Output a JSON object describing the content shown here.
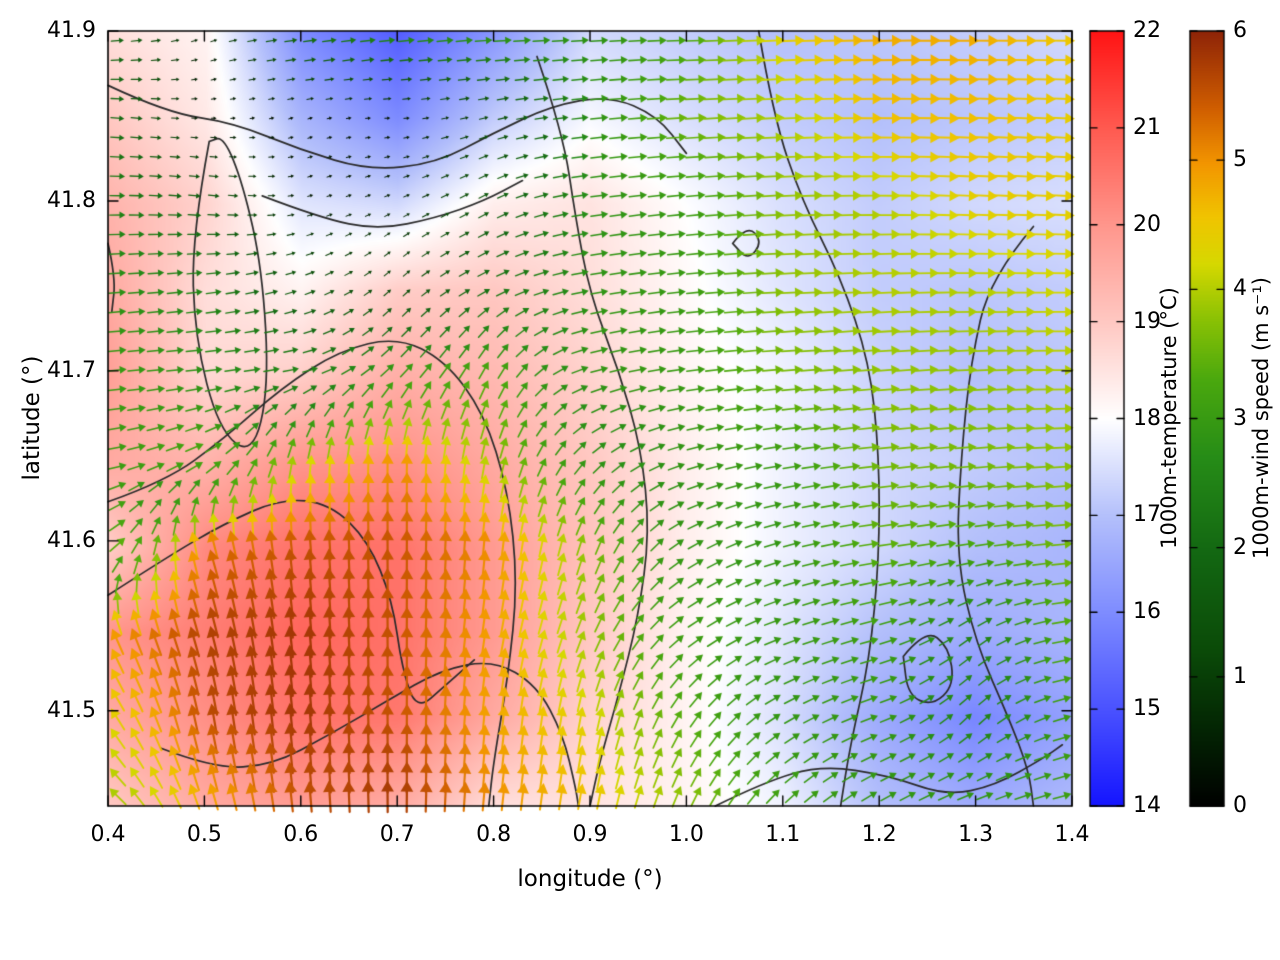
{
  "chart_data": {
    "type": "heatmap",
    "subtype": "temperature field with wind vector overlay and contours",
    "title": "",
    "xlabel": "longitude (°)",
    "ylabel": "latitude (°)",
    "xlim": [
      0.4,
      1.4
    ],
    "ylim": [
      41.444,
      41.9
    ],
    "grid": false,
    "frame_color": "#000000",
    "contour_color": "#2a2a2a",
    "xticks": {
      "values": [
        0.4,
        0.5,
        0.6,
        0.7,
        0.8,
        0.9,
        1.0,
        1.1,
        1.2,
        1.3,
        1.4
      ],
      "labels": [
        "0.4",
        "0.5",
        "0.6",
        "0.7",
        "0.8",
        "0.9",
        "1.0",
        "1.1",
        "1.2",
        "1.3",
        "1.4"
      ]
    },
    "yticks": {
      "values": [
        41.5,
        41.6,
        41.7,
        41.8,
        41.9
      ],
      "labels": [
        "41.5",
        "41.6",
        "41.7",
        "41.8",
        "41.9"
      ]
    },
    "temperature": {
      "label": "1000m-temperature (°C)",
      "range": [
        14,
        22
      ],
      "ticks": {
        "values": [
          14,
          15,
          16,
          17,
          18,
          19,
          20,
          21,
          22
        ],
        "labels": [
          "14",
          "15",
          "16",
          "17",
          "18",
          "19",
          "20",
          "21",
          "22"
        ]
      },
      "colormap": [
        [
          0.0,
          "#1414ff"
        ],
        [
          0.125,
          "#4a52ff"
        ],
        [
          0.25,
          "#7e8cff"
        ],
        [
          0.375,
          "#b4c0fb"
        ],
        [
          0.5,
          "#ffffff"
        ],
        [
          0.625,
          "#ffc8c2"
        ],
        [
          0.75,
          "#ff968c"
        ],
        [
          0.875,
          "#ff5a50"
        ],
        [
          1.0,
          "#ff1414"
        ]
      ],
      "lon": [
        0.4,
        0.5,
        0.6,
        0.7,
        0.8,
        0.9,
        1.0,
        1.1,
        1.2,
        1.3,
        1.4
      ],
      "lat": [
        41.9,
        41.85,
        41.8,
        41.75,
        41.7,
        41.65,
        41.6,
        41.55,
        41.5,
        41.444
      ],
      "values": [
        [
          18.6,
          18.2,
          16.0,
          15.2,
          16.2,
          17.4,
          17.2,
          17.0,
          17.1,
          17.2,
          17.4
        ],
        [
          19.0,
          18.4,
          16.8,
          16.0,
          17.2,
          17.9,
          17.5,
          17.2,
          17.0,
          17.1,
          17.2
        ],
        [
          19.4,
          18.8,
          17.6,
          17.4,
          18.3,
          18.5,
          18.0,
          17.5,
          17.2,
          17.4,
          17.5
        ],
        [
          19.6,
          18.6,
          18.2,
          18.9,
          19.0,
          18.6,
          18.1,
          17.6,
          17.2,
          17.1,
          17.2
        ],
        [
          19.8,
          18.7,
          18.9,
          19.5,
          19.3,
          18.8,
          18.2,
          17.8,
          17.3,
          17.0,
          17.1
        ],
        [
          19.6,
          19.4,
          20.0,
          20.1,
          19.6,
          19.0,
          18.3,
          17.8,
          17.4,
          17.2,
          17.0
        ],
        [
          18.9,
          20.2,
          20.6,
          20.6,
          19.9,
          19.1,
          18.3,
          17.8,
          17.4,
          17.0,
          16.8
        ],
        [
          20.0,
          20.4,
          20.8,
          20.6,
          19.9,
          19.0,
          18.2,
          17.6,
          17.0,
          16.6,
          16.8
        ],
        [
          19.6,
          20.1,
          20.6,
          20.5,
          19.6,
          18.8,
          18.2,
          17.5,
          16.6,
          15.9,
          16.4
        ],
        [
          19.0,
          19.6,
          19.9,
          19.6,
          18.6,
          18.5,
          18.2,
          17.8,
          17.0,
          16.6,
          16.9
        ]
      ]
    },
    "wind": {
      "label": "1000m-wind speed (m s⁻¹)",
      "range": [
        0,
        6
      ],
      "ticks": {
        "values": [
          0,
          1,
          2,
          3,
          4,
          5,
          6
        ],
        "labels": [
          "0",
          "1",
          "2",
          "3",
          "4",
          "5",
          "6"
        ]
      },
      "colormap": [
        [
          0.0,
          "#000000"
        ],
        [
          0.1,
          "#032503"
        ],
        [
          0.2,
          "#0a4a08"
        ],
        [
          0.33,
          "#136812"
        ],
        [
          0.45,
          "#268c17"
        ],
        [
          0.55,
          "#4aa80e"
        ],
        [
          0.63,
          "#8cc204"
        ],
        [
          0.7,
          "#d6d800"
        ],
        [
          0.76,
          "#f0c400"
        ],
        [
          0.83,
          "#f29500"
        ],
        [
          0.9,
          "#d05e00"
        ],
        [
          1.0,
          "#8e2407"
        ]
      ],
      "lon": [
        0.4,
        0.5,
        0.6,
        0.7,
        0.8,
        0.9,
        1.0,
        1.1,
        1.2,
        1.3,
        1.4
      ],
      "lat": [
        41.9,
        41.85,
        41.8,
        41.75,
        41.7,
        41.65,
        41.6,
        41.55,
        41.5,
        41.444
      ],
      "u": [
        [
          2.0,
          0.5,
          2.2,
          2.8,
          3.0,
          2.8,
          3.2,
          4.4,
          4.8,
          4.8,
          4.5
        ],
        [
          2.2,
          0.3,
          0.3,
          0.4,
          1.2,
          2.8,
          3.6,
          4.0,
          4.6,
          4.6,
          4.4
        ],
        [
          2.5,
          1.8,
          0.4,
          0.5,
          1.5,
          2.8,
          3.0,
          3.8,
          4.0,
          4.4,
          4.4
        ],
        [
          2.8,
          2.5,
          1.5,
          0.8,
          2.0,
          2.8,
          3.0,
          3.8,
          4.0,
          4.0,
          4.2
        ],
        [
          3.0,
          2.8,
          2.5,
          2.2,
          1.5,
          2.8,
          3.0,
          3.6,
          3.8,
          3.8,
          4.0
        ],
        [
          3.0,
          3.0,
          0.5,
          0.0,
          0.8,
          2.0,
          2.8,
          3.0,
          3.6,
          3.6,
          3.8
        ],
        [
          3.0,
          -1.5,
          -0.5,
          0.0,
          0.5,
          1.2,
          2.5,
          2.8,
          3.4,
          3.2,
          3.6
        ],
        [
          -2.0,
          -1.5,
          -0.5,
          0.0,
          0.8,
          1.5,
          2.5,
          2.8,
          3.0,
          2.0,
          3.4
        ],
        [
          -2.5,
          -1.0,
          -0.5,
          0.0,
          0.5,
          0.8,
          1.8,
          2.5,
          2.8,
          1.8,
          3.0
        ],
        [
          -3.0,
          -1.5,
          -0.5,
          0.0,
          0.5,
          0.8,
          1.5,
          2.2,
          2.5,
          2.8,
          3.0
        ]
      ],
      "v": [
        [
          0.2,
          0.2,
          0.3,
          0.3,
          0.2,
          0.2,
          0.1,
          0.2,
          0.1,
          0.0,
          0.0
        ],
        [
          -0.2,
          0.0,
          0.1,
          0.0,
          0.3,
          0.3,
          0.2,
          0.2,
          0.0,
          -0.2,
          -0.2
        ],
        [
          0.0,
          -0.2,
          0.1,
          0.2,
          0.8,
          0.4,
          0.3,
          0.2,
          0.0,
          -0.2,
          -0.2
        ],
        [
          0.2,
          0.3,
          0.5,
          0.8,
          1.0,
          0.5,
          0.3,
          0.2,
          0.2,
          0.0,
          0.0
        ],
        [
          0.3,
          0.3,
          0.5,
          2.2,
          3.0,
          0.8,
          0.4,
          0.3,
          0.3,
          0.2,
          0.0
        ],
        [
          0.5,
          1.5,
          4.0,
          5.0,
          3.8,
          2.0,
          0.8,
          0.5,
          0.4,
          0.3,
          0.2
        ],
        [
          2.0,
          5.0,
          5.5,
          5.5,
          5.0,
          3.5,
          1.5,
          0.8,
          0.5,
          0.5,
          0.3
        ],
        [
          4.5,
          5.5,
          5.8,
          5.5,
          4.8,
          3.5,
          1.8,
          1.0,
          0.8,
          1.5,
          0.5
        ],
        [
          3.5,
          5.5,
          5.8,
          5.5,
          4.8,
          4.2,
          2.8,
          1.5,
          1.0,
          1.8,
          0.8
        ],
        [
          2.5,
          4.5,
          5.5,
          5.8,
          5.0,
          4.5,
          3.5,
          2.2,
          1.5,
          1.0,
          0.8
        ]
      ]
    },
    "contours_lonlat": [
      [
        [
          0.505,
          41.835
        ],
        [
          0.487,
          41.78
        ],
        [
          0.49,
          41.72
        ],
        [
          0.515,
          41.665
        ],
        [
          0.55,
          41.65
        ],
        [
          0.567,
          41.69
        ],
        [
          0.56,
          41.76
        ],
        [
          0.54,
          41.81
        ],
        [
          0.52,
          41.838
        ],
        [
          0.505,
          41.835
        ]
      ],
      [
        [
          0.4,
          41.868
        ],
        [
          0.46,
          41.852
        ],
        [
          0.53,
          41.846
        ],
        [
          0.6,
          41.83
        ],
        [
          0.67,
          41.818
        ],
        [
          0.74,
          41.822
        ],
        [
          0.8,
          41.84
        ],
        [
          0.86,
          41.856
        ],
        [
          0.92,
          41.862
        ],
        [
          0.97,
          41.85
        ],
        [
          1.0,
          41.828
        ]
      ],
      [
        [
          0.56,
          41.803
        ],
        [
          0.62,
          41.79
        ],
        [
          0.68,
          41.783
        ],
        [
          0.74,
          41.79
        ],
        [
          0.79,
          41.8
        ],
        [
          0.83,
          41.812
        ]
      ],
      [
        [
          0.845,
          41.885
        ],
        [
          0.872,
          41.84
        ],
        [
          0.885,
          41.79
        ],
        [
          0.9,
          41.745
        ],
        [
          0.93,
          41.7
        ],
        [
          0.953,
          41.655
        ],
        [
          0.962,
          41.605
        ],
        [
          0.95,
          41.555
        ],
        [
          0.93,
          41.51
        ],
        [
          0.91,
          41.47
        ],
        [
          0.9,
          41.444
        ]
      ],
      [
        [
          1.075,
          41.9
        ],
        [
          1.09,
          41.85
        ],
        [
          1.12,
          41.8
        ],
        [
          1.16,
          41.755
        ],
        [
          1.19,
          41.705
        ],
        [
          1.2,
          41.65
        ],
        [
          1.2,
          41.59
        ],
        [
          1.19,
          41.53
        ],
        [
          1.17,
          41.48
        ],
        [
          1.16,
          41.444
        ]
      ],
      [
        [
          1.36,
          41.785
        ],
        [
          1.315,
          41.755
        ],
        [
          1.295,
          41.705
        ],
        [
          1.285,
          41.65
        ],
        [
          1.28,
          41.59
        ],
        [
          1.3,
          41.54
        ],
        [
          1.335,
          41.495
        ],
        [
          1.355,
          41.465
        ],
        [
          1.36,
          41.444
        ]
      ],
      [
        [
          0.4,
          41.623
        ],
        [
          0.46,
          41.635
        ],
        [
          0.52,
          41.66
        ],
        [
          0.58,
          41.69
        ],
        [
          0.64,
          41.712
        ],
        [
          0.7,
          41.72
        ],
        [
          0.75,
          41.706
        ],
        [
          0.79,
          41.675
        ],
        [
          0.815,
          41.63
        ],
        [
          0.825,
          41.575
        ],
        [
          0.815,
          41.52
        ],
        [
          0.8,
          41.47
        ],
        [
          0.795,
          41.444
        ]
      ],
      [
        [
          0.4,
          41.568
        ],
        [
          0.46,
          41.59
        ],
        [
          0.52,
          41.61
        ],
        [
          0.58,
          41.625
        ],
        [
          0.63,
          41.622
        ],
        [
          0.67,
          41.6
        ],
        [
          0.695,
          41.565
        ],
        [
          0.705,
          41.525
        ],
        [
          0.72,
          41.5
        ],
        [
          0.75,
          41.515
        ],
        [
          0.78,
          41.53
        ]
      ],
      [
        [
          0.455,
          41.478
        ],
        [
          0.51,
          41.466
        ],
        [
          0.57,
          41.468
        ],
        [
          0.63,
          41.486
        ],
        [
          0.69,
          41.506
        ],
        [
          0.745,
          41.524
        ],
        [
          0.8,
          41.53
        ],
        [
          0.845,
          41.515
        ],
        [
          0.872,
          41.486
        ],
        [
          0.885,
          41.455
        ],
        [
          0.888,
          41.444
        ]
      ],
      [
        [
          1.03,
          41.444
        ],
        [
          1.08,
          41.458
        ],
        [
          1.14,
          41.468
        ],
        [
          1.21,
          41.462
        ],
        [
          1.27,
          41.45
        ],
        [
          1.32,
          41.456
        ],
        [
          1.37,
          41.472
        ],
        [
          1.39,
          41.48
        ]
      ],
      [
        [
          1.225,
          41.532
        ],
        [
          1.248,
          41.548
        ],
        [
          1.272,
          41.538
        ],
        [
          1.278,
          41.515
        ],
        [
          1.255,
          41.503
        ],
        [
          1.23,
          41.509
        ],
        [
          1.225,
          41.532
        ]
      ],
      [
        [
          1.048,
          41.775
        ],
        [
          1.063,
          41.786
        ],
        [
          1.079,
          41.776
        ],
        [
          1.064,
          41.765
        ],
        [
          1.048,
          41.775
        ]
      ],
      [
        [
          0.4,
          41.775
        ],
        [
          0.408,
          41.755
        ],
        [
          0.404,
          41.735
        ]
      ]
    ]
  }
}
